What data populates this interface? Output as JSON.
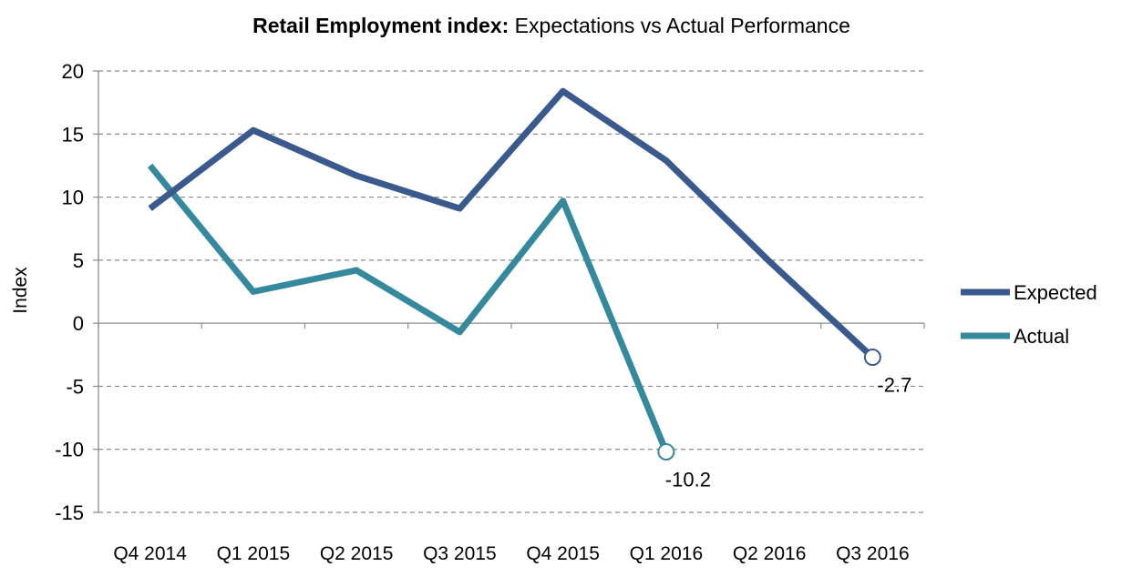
{
  "chart_data": {
    "type": "line",
    "title_bold": "Retail Employment index:",
    "title_rest": " Expectations vs Actual Performance",
    "xlabel": "",
    "ylabel": "Index",
    "ylim": [
      -15,
      20
    ],
    "yticks": [
      20,
      15,
      10,
      5,
      0,
      -5,
      -10,
      -15
    ],
    "grid": true,
    "legend_position": "right",
    "categories": [
      "Q4 2014",
      "Q1 2015",
      "Q2 2015",
      "Q3 2015",
      "Q4 2015",
      "Q1 2016",
      "Q2 2016",
      "Q3 2016"
    ],
    "series": [
      {
        "name": "Expected",
        "color": "#3a5a8e",
        "values": [
          9.1,
          15.3,
          11.7,
          9.1,
          18.4,
          12.9,
          4.9,
          -2.7
        ],
        "end_label": "-2.7"
      },
      {
        "name": "Actual",
        "color": "#35899c",
        "values": [
          12.5,
          2.5,
          4.2,
          -0.7,
          9.7,
          -10.2,
          null,
          null
        ],
        "end_label": "-10.2"
      }
    ]
  }
}
